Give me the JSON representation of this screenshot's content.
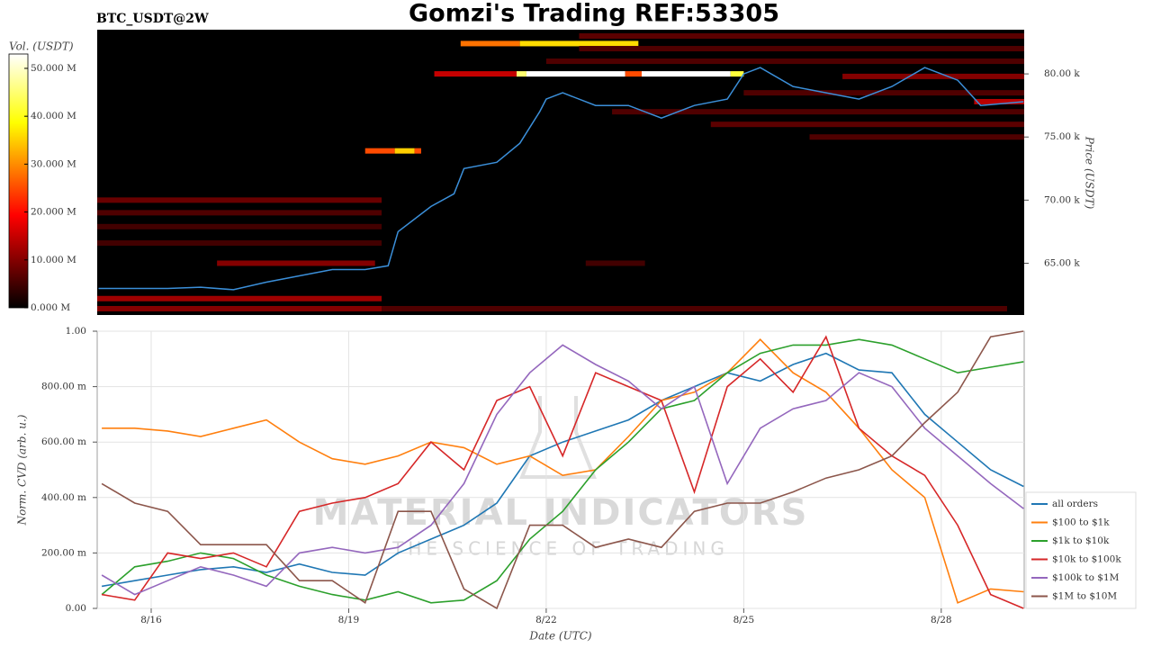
{
  "chart_data": [
    {
      "type": "heatmap",
      "title": "Gomzi's Trading REF:53305",
      "subtitle": "BTC_USDT@2W",
      "ylabel": "Price (USDT)",
      "xlim": [
        15.18,
        29.26
      ],
      "ylim": [
        60.9,
        83.5
      ],
      "yticks": [
        {
          "value": 65,
          "label": "65.00 k"
        },
        {
          "value": 70,
          "label": "70.00 k"
        },
        {
          "value": 75,
          "label": "75.00 k"
        },
        {
          "value": 80,
          "label": "80.00 k"
        }
      ],
      "colorbar": {
        "label": "Vol. (USDT)",
        "lim": [
          0,
          53
        ],
        "ticks": [
          {
            "value": 0,
            "label": "0.000 M"
          },
          {
            "value": 10,
            "label": "10.000 M"
          },
          {
            "value": 20,
            "label": "20.000 M"
          },
          {
            "value": 30,
            "label": "30.000 M"
          },
          {
            "value": 40,
            "label": "40.000 M"
          },
          {
            "value": 50,
            "label": "50.000 M"
          }
        ]
      },
      "cells": [
        {
          "x": [
            21.55,
            21.7
          ],
          "price": 80.0,
          "volume": 45
        },
        {
          "x": [
            21.7,
            23.2
          ],
          "price": 80.0,
          "volume": 53
        },
        {
          "x": [
            23.2,
            23.45
          ],
          "price": 80.0,
          "volume": 25
        },
        {
          "x": [
            23.45,
            24.8
          ],
          "price": 80.0,
          "volume": 53
        },
        {
          "x": [
            24.8,
            25.0
          ],
          "price": 80.0,
          "volume": 42
        },
        {
          "x": [
            20.3,
            21.55
          ],
          "price": 80.0,
          "volume": 15
        },
        {
          "x": [
            20.7,
            21.6
          ],
          "price": 82.4,
          "volume": 28
        },
        {
          "x": [
            21.6,
            23.4
          ],
          "price": 82.4,
          "volume": 36
        },
        {
          "x": [
            19.25,
            19.7
          ],
          "price": 73.9,
          "volume": 25
        },
        {
          "x": [
            19.7,
            20.0
          ],
          "price": 73.9,
          "volume": 35
        },
        {
          "x": [
            20.0,
            20.1
          ],
          "price": 73.9,
          "volume": 25
        },
        {
          "x": [
            15.18,
            19.5
          ],
          "price": 62.2,
          "volume": 12
        },
        {
          "x": [
            15.18,
            19.5
          ],
          "price": 61.4,
          "volume": 10
        },
        {
          "x": [
            19.5,
            29.0
          ],
          "price": 61.4,
          "volume": 6
        },
        {
          "x": [
            15.18,
            19.5
          ],
          "price": 70.0,
          "volume": 8
        },
        {
          "x": [
            15.18,
            19.5
          ],
          "price": 69.0,
          "volume": 6
        },
        {
          "x": [
            15.18,
            19.5
          ],
          "price": 67.9,
          "volume": 5
        },
        {
          "x": [
            15.18,
            19.5
          ],
          "price": 66.6,
          "volume": 5
        },
        {
          "x": [
            17.0,
            19.4
          ],
          "price": 65.0,
          "volume": 10
        },
        {
          "x": [
            22.6,
            23.5
          ],
          "price": 65.0,
          "volume": 5
        },
        {
          "x": [
            22.5,
            29.26
          ],
          "price": 83.0,
          "volume": 7
        },
        {
          "x": [
            22.5,
            29.26
          ],
          "price": 82.0,
          "volume": 6
        },
        {
          "x": [
            22.0,
            29.26
          ],
          "price": 81.0,
          "volume": 6
        },
        {
          "x": [
            25.0,
            29.26
          ],
          "price": 78.5,
          "volume": 6
        },
        {
          "x": [
            23.0,
            29.26
          ],
          "price": 77.0,
          "volume": 6
        },
        {
          "x": [
            24.5,
            29.26
          ],
          "price": 76.0,
          "volume": 7
        },
        {
          "x": [
            26.0,
            29.26
          ],
          "price": 75.0,
          "volume": 6
        },
        {
          "x": [
            26.5,
            29.26
          ],
          "price": 79.8,
          "volume": 10
        },
        {
          "x": [
            28.5,
            29.26
          ],
          "price": 77.8,
          "volume": 14
        }
      ],
      "price_line": {
        "color": "#3b8fd9",
        "x": [
          15.2,
          15.75,
          16.25,
          16.75,
          17.25,
          17.75,
          18.25,
          18.75,
          19.25,
          19.6,
          19.75,
          20.25,
          20.6,
          20.75,
          21.25,
          21.6,
          21.9,
          22.0,
          22.25,
          22.75,
          23.25,
          23.75,
          24.25,
          24.75,
          25.0,
          25.25,
          25.75,
          26.25,
          26.75,
          27.25,
          27.75,
          28.0,
          28.25,
          28.6,
          29.25
        ],
        "values": [
          63.0,
          63.0,
          63.0,
          63.1,
          62.9,
          63.5,
          64.0,
          64.5,
          64.5,
          64.8,
          67.5,
          69.5,
          70.5,
          72.5,
          73.0,
          74.5,
          77.0,
          78.0,
          78.5,
          77.5,
          77.5,
          76.5,
          77.5,
          78.0,
          80.0,
          80.5,
          79.0,
          78.5,
          78.0,
          79.0,
          80.5,
          80.0,
          79.5,
          77.5,
          77.8
        ]
      }
    },
    {
      "type": "line",
      "xlabel": "Date (UTC)",
      "ylabel": "Norm. CVD (arb. u.)",
      "xlim": [
        15.18,
        29.26
      ],
      "xticks": [
        {
          "value": 16,
          "label": "8/16"
        },
        {
          "value": 19,
          "label": "8/19"
        },
        {
          "value": 22,
          "label": "8/22"
        },
        {
          "value": 25,
          "label": "8/25"
        },
        {
          "value": 28,
          "label": "8/28"
        }
      ],
      "ylim": [
        0,
        1
      ],
      "yticks": [
        {
          "value": 0,
          "label": "0.00"
        },
        {
          "value": 0.2,
          "label": "200.00 m"
        },
        {
          "value": 0.4,
          "label": "400.00 m"
        },
        {
          "value": 0.6,
          "label": "600.00 m"
        },
        {
          "value": 0.8,
          "label": "800.00 m"
        },
        {
          "value": 1,
          "label": "1.00"
        }
      ],
      "grid": true,
      "legend": "lower right",
      "watermark": [
        "MATERIAL INDICATORS",
        "THE SCIENCE OF TRADING"
      ],
      "x": [
        15.25,
        15.75,
        16.25,
        16.75,
        17.25,
        17.75,
        18.25,
        18.75,
        19.25,
        19.75,
        20.25,
        20.75,
        21.25,
        21.75,
        22.25,
        22.75,
        23.25,
        23.75,
        24.25,
        24.75,
        25.25,
        25.75,
        26.25,
        26.75,
        27.25,
        27.75,
        28.25,
        28.75,
        29.25
      ],
      "series": [
        {
          "name": "all orders",
          "color": "#1f77b4",
          "values": [
            0.08,
            0.1,
            0.12,
            0.14,
            0.15,
            0.13,
            0.16,
            0.13,
            0.12,
            0.2,
            0.25,
            0.3,
            0.38,
            0.55,
            0.6,
            0.64,
            0.68,
            0.75,
            0.8,
            0.85,
            0.82,
            0.88,
            0.92,
            0.86,
            0.85,
            0.7,
            0.6,
            0.5,
            0.44
          ]
        },
        {
          "name": "$100 to $1k",
          "color": "#ff7f0e",
          "values": [
            0.65,
            0.65,
            0.64,
            0.62,
            0.65,
            0.68,
            0.6,
            0.54,
            0.52,
            0.55,
            0.6,
            0.58,
            0.52,
            0.55,
            0.48,
            0.5,
            0.62,
            0.75,
            0.78,
            0.85,
            0.97,
            0.85,
            0.78,
            0.65,
            0.5,
            0.4,
            0.02,
            0.07,
            0.06
          ]
        },
        {
          "name": "$1k to $10k",
          "color": "#2ca02c",
          "values": [
            0.05,
            0.15,
            0.17,
            0.2,
            0.18,
            0.12,
            0.08,
            0.05,
            0.03,
            0.06,
            0.02,
            0.03,
            0.1,
            0.25,
            0.35,
            0.5,
            0.6,
            0.72,
            0.75,
            0.85,
            0.92,
            0.95,
            0.95,
            0.97,
            0.95,
            0.9,
            0.85,
            0.87,
            0.89
          ]
        },
        {
          "name": "$10k to $100k",
          "color": "#d62728",
          "values": [
            0.05,
            0.03,
            0.2,
            0.18,
            0.2,
            0.15,
            0.35,
            0.38,
            0.4,
            0.45,
            0.6,
            0.5,
            0.75,
            0.8,
            0.55,
            0.85,
            0.8,
            0.75,
            0.42,
            0.8,
            0.9,
            0.78,
            0.98,
            0.65,
            0.55,
            0.48,
            0.3,
            0.05,
            0.0
          ]
        },
        {
          "name": "$100k to $1M",
          "color": "#9467bd",
          "values": [
            0.12,
            0.05,
            0.1,
            0.15,
            0.12,
            0.08,
            0.2,
            0.22,
            0.2,
            0.22,
            0.3,
            0.45,
            0.7,
            0.85,
            0.95,
            0.88,
            0.82,
            0.72,
            0.8,
            0.45,
            0.65,
            0.72,
            0.75,
            0.85,
            0.8,
            0.65,
            0.55,
            0.45,
            0.36
          ]
        },
        {
          "name": "$1M to $10M",
          "color": "#8c564b",
          "values": [
            0.45,
            0.38,
            0.35,
            0.23,
            0.23,
            0.23,
            0.1,
            0.1,
            0.02,
            0.35,
            0.35,
            0.07,
            0.0,
            0.3,
            0.3,
            0.22,
            0.25,
            0.22,
            0.35,
            0.38,
            0.38,
            0.42,
            0.47,
            0.5,
            0.55,
            0.67,
            0.78,
            0.98,
            1.0
          ]
        }
      ]
    }
  ]
}
